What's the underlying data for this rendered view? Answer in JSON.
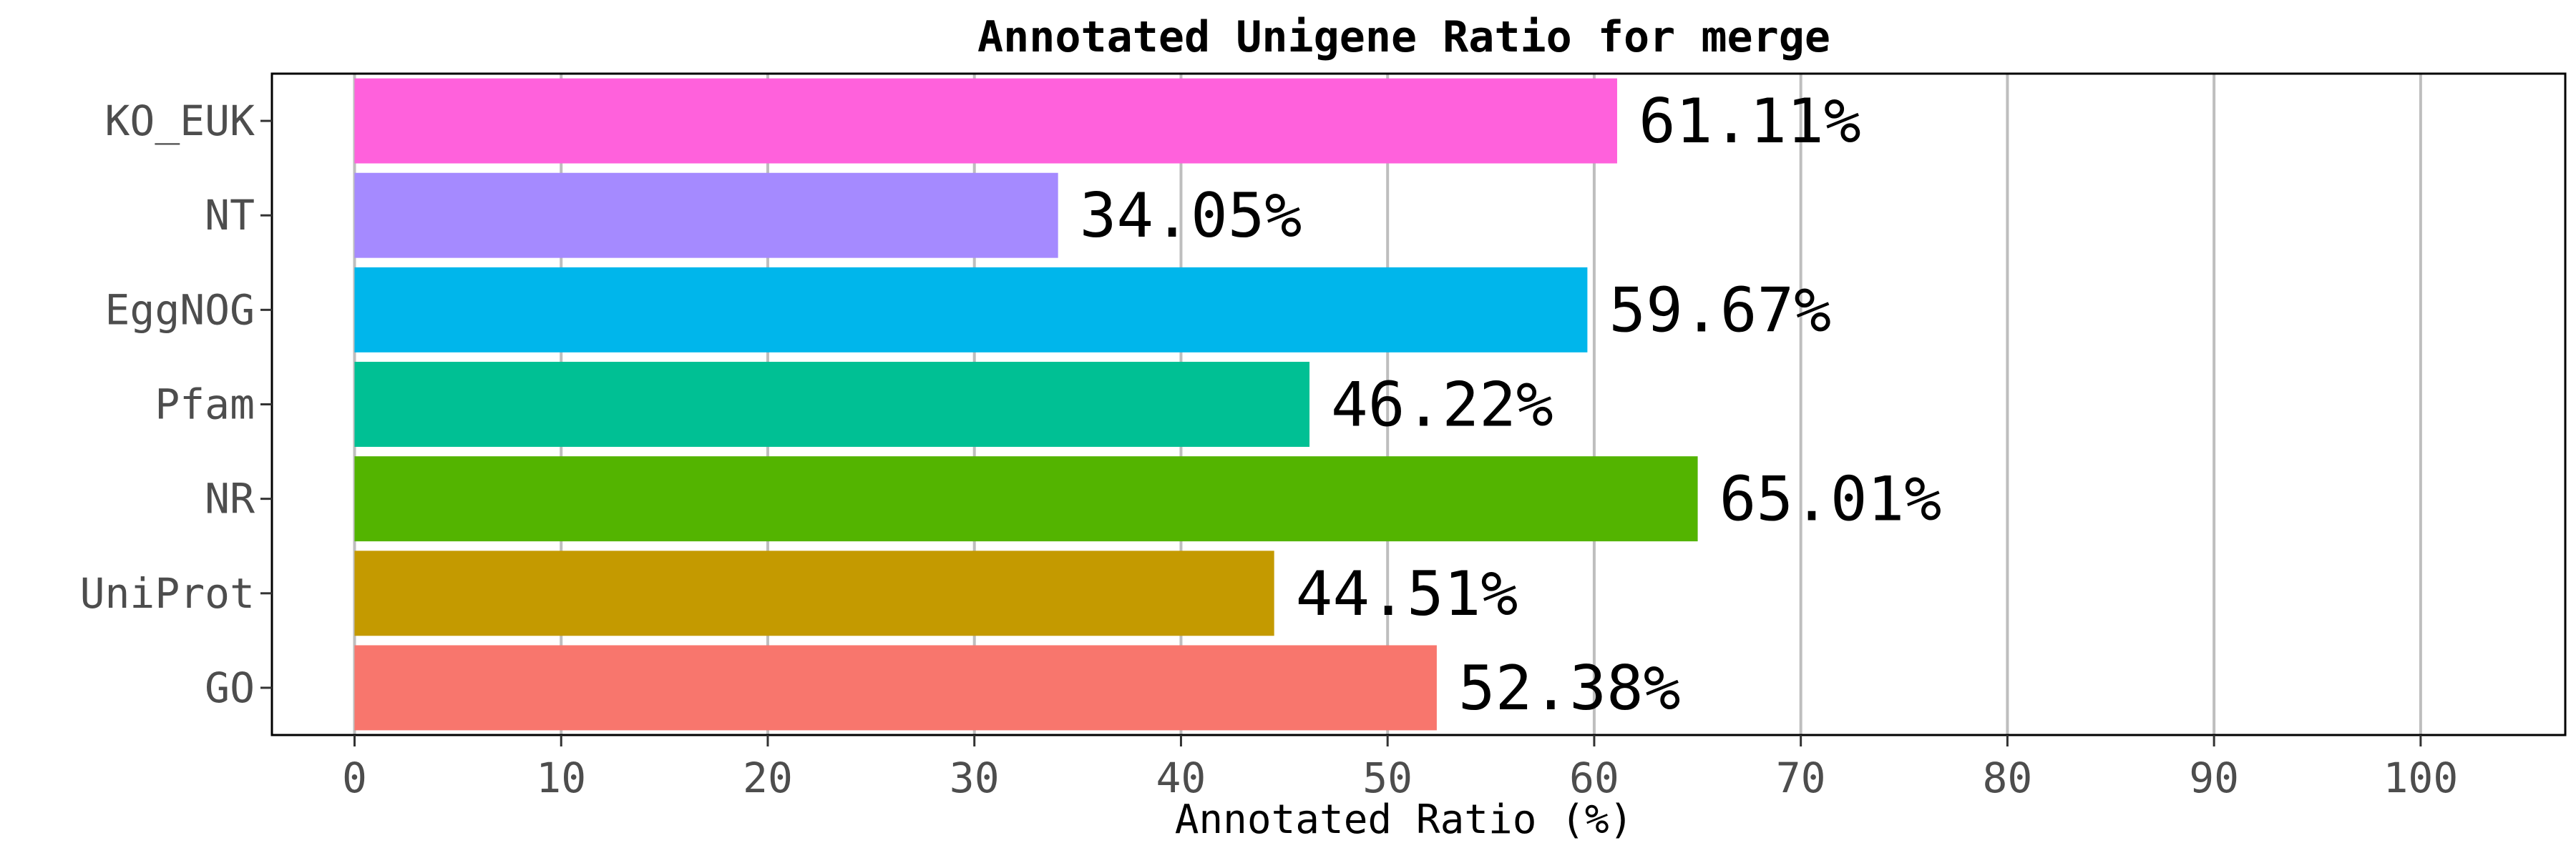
{
  "chart_data": {
    "type": "bar",
    "orientation": "horizontal",
    "title": "Annotated Unigene Ratio for merge",
    "xlabel": "Annotated Ratio (%)",
    "ylabel": "",
    "xlim": [
      -4,
      107
    ],
    "xticks": [
      "0",
      "10",
      "20",
      "30",
      "40",
      "50",
      "60",
      "70",
      "80",
      "90",
      "100"
    ],
    "grid": true,
    "legend": "none",
    "categories": [
      "KO_EUK",
      "NT",
      "EggNOG",
      "Pfam",
      "NR",
      "UniProt",
      "GO"
    ],
    "values": [
      61.11,
      34.05,
      59.67,
      46.22,
      65.01,
      44.51,
      52.38
    ],
    "data_labels": [
      "61.11%",
      "34.05%",
      "59.67%",
      "46.22%",
      "65.01%",
      "44.51%",
      "52.38%"
    ],
    "colors": [
      "#FF61DC",
      "#A58AFF",
      "#00B6EB",
      "#00C094",
      "#53B400",
      "#C49A00",
      "#F8766D"
    ]
  }
}
